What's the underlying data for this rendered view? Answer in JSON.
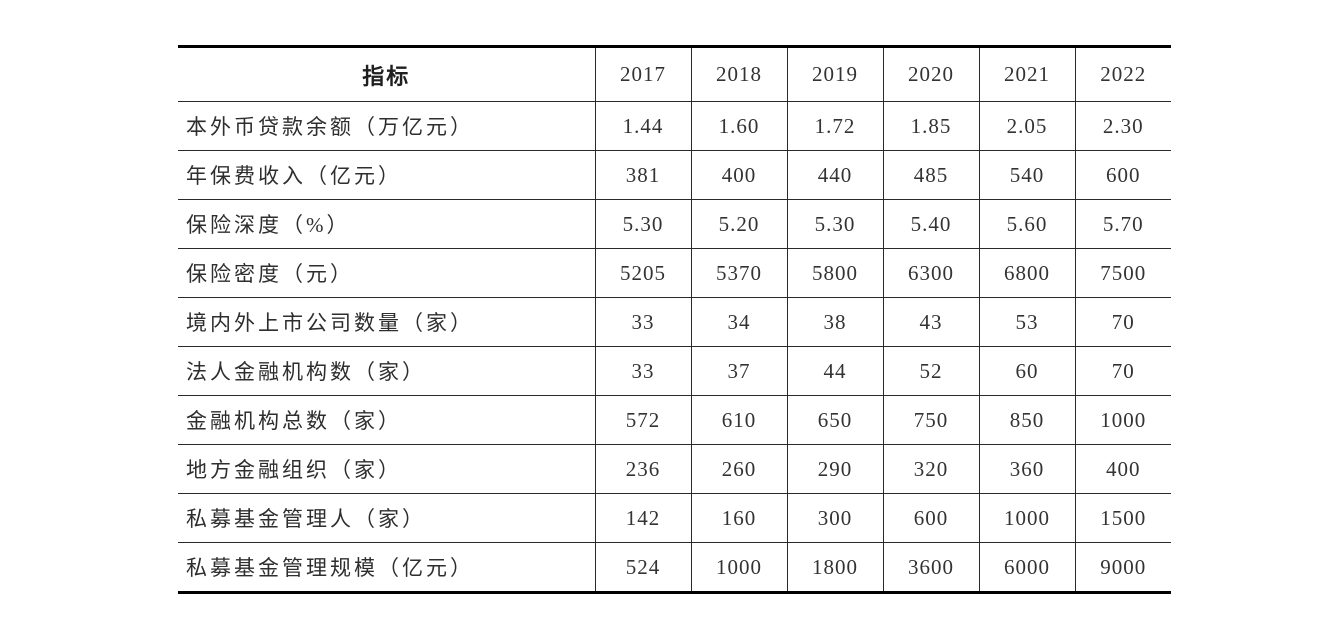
{
  "table": {
    "header": {
      "indicator_label": "指标",
      "years": [
        "2017",
        "2018",
        "2019",
        "2020",
        "2021",
        "2022"
      ]
    },
    "rows": [
      {
        "label": "本外币贷款余额（万亿元）",
        "values": [
          "1.44",
          "1.60",
          "1.72",
          "1.85",
          "2.05",
          "2.30"
        ]
      },
      {
        "label": "年保费收入（亿元）",
        "values": [
          "381",
          "400",
          "440",
          "485",
          "540",
          "600"
        ]
      },
      {
        "label": "保险深度（%）",
        "values": [
          "5.30",
          "5.20",
          "5.30",
          "5.40",
          "5.60",
          "5.70"
        ]
      },
      {
        "label": "保险密度（元）",
        "values": [
          "5205",
          "5370",
          "5800",
          "6300",
          "6800",
          "7500"
        ]
      },
      {
        "label": "境内外上市公司数量（家）",
        "values": [
          "33",
          "34",
          "38",
          "43",
          "53",
          "70"
        ]
      },
      {
        "label": "法人金融机构数（家）",
        "values": [
          "33",
          "37",
          "44",
          "52",
          "60",
          "70"
        ]
      },
      {
        "label": "金融机构总数（家）",
        "values": [
          "572",
          "610",
          "650",
          "750",
          "850",
          "1000"
        ]
      },
      {
        "label": "地方金融组织（家）",
        "values": [
          "236",
          "260",
          "290",
          "320",
          "360",
          "400"
        ]
      },
      {
        "label": "私募基金管理人（家）",
        "values": [
          "142",
          "160",
          "300",
          "600",
          "1000",
          "1500"
        ]
      },
      {
        "label": "私募基金管理规模（亿元）",
        "values": [
          "524",
          "1000",
          "1800",
          "3600",
          "6000",
          "9000"
        ]
      }
    ],
    "colors": {
      "border_heavy": "#000000",
      "border_light": "#2a2a2a",
      "text": "#333333"
    }
  },
  "chart_data": {
    "type": "table",
    "columns": [
      "指标",
      "2017",
      "2018",
      "2019",
      "2020",
      "2021",
      "2022"
    ],
    "rows": [
      [
        "本外币贷款余额（万亿元）",
        1.44,
        1.6,
        1.72,
        1.85,
        2.05,
        2.3
      ],
      [
        "年保费收入（亿元）",
        381,
        400,
        440,
        485,
        540,
        600
      ],
      [
        "保险深度（%）",
        5.3,
        5.2,
        5.3,
        5.4,
        5.6,
        5.7
      ],
      [
        "保险密度（元）",
        5205,
        5370,
        5800,
        6300,
        6800,
        7500
      ],
      [
        "境内外上市公司数量（家）",
        33,
        34,
        38,
        43,
        53,
        70
      ],
      [
        "法人金融机构数（家）",
        33,
        37,
        44,
        52,
        60,
        70
      ],
      [
        "金融机构总数（家）",
        572,
        610,
        650,
        750,
        850,
        1000
      ],
      [
        "地方金融组织（家）",
        236,
        260,
        290,
        320,
        360,
        400
      ],
      [
        "私募基金管理人（家）",
        142,
        160,
        300,
        600,
        1000,
        1500
      ],
      [
        "私募基金管理规模（亿元）",
        524,
        1000,
        1800,
        3600,
        6000,
        9000
      ]
    ]
  }
}
